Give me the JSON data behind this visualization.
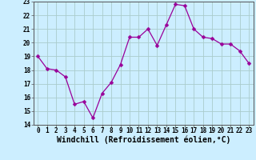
{
  "x": [
    0,
    1,
    2,
    3,
    4,
    5,
    6,
    7,
    8,
    9,
    10,
    11,
    12,
    13,
    14,
    15,
    16,
    17,
    18,
    19,
    20,
    21,
    22,
    23
  ],
  "y": [
    19.0,
    18.1,
    18.0,
    17.5,
    15.5,
    15.7,
    14.5,
    16.3,
    17.1,
    18.4,
    20.4,
    20.4,
    21.0,
    19.8,
    21.3,
    22.8,
    22.7,
    21.0,
    20.4,
    20.3,
    19.9,
    19.9,
    19.4,
    18.5
  ],
  "line_color": "#990099",
  "marker_color": "#990099",
  "bg_color": "#cceeff",
  "grid_color": "#aacccc",
  "xlabel": "Windchill (Refroidissement éolien,°C)",
  "xlim": [
    -0.5,
    23.5
  ],
  "ylim": [
    14,
    23
  ],
  "yticks": [
    14,
    15,
    16,
    17,
    18,
    19,
    20,
    21,
    22,
    23
  ],
  "xticks": [
    0,
    1,
    2,
    3,
    4,
    5,
    6,
    7,
    8,
    9,
    10,
    11,
    12,
    13,
    14,
    15,
    16,
    17,
    18,
    19,
    20,
    21,
    22,
    23
  ],
  "tick_label_fontsize": 5.5,
  "xlabel_fontsize": 7.0,
  "marker_size": 2.5,
  "linewidth": 0.9
}
